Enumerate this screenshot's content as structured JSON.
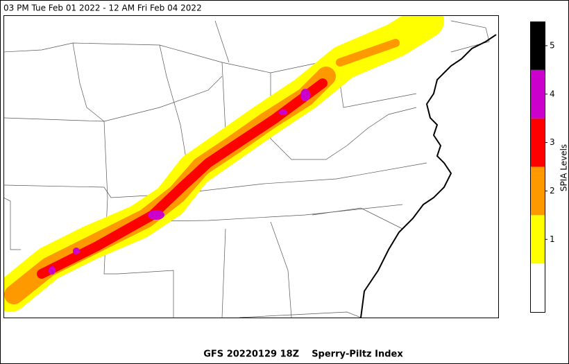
{
  "title": "03 PM Tue Feb 01 2022 - 12 AM Fri Feb 04 2022",
  "footer": "GFS 20220129 18Z    Sperry-Piltz Index",
  "colorbar": {
    "label": "SPIA Levels",
    "bounds": [
      0,
      0.5,
      1.5,
      2.5,
      3.5,
      4.5,
      5.5
    ],
    "colors": [
      "#ffffff",
      "#ffff00",
      "#ff9900",
      "#ff0000",
      "#cc00cc",
      "#000000"
    ],
    "ticks": [
      1,
      2,
      3,
      4,
      5
    ]
  }
}
